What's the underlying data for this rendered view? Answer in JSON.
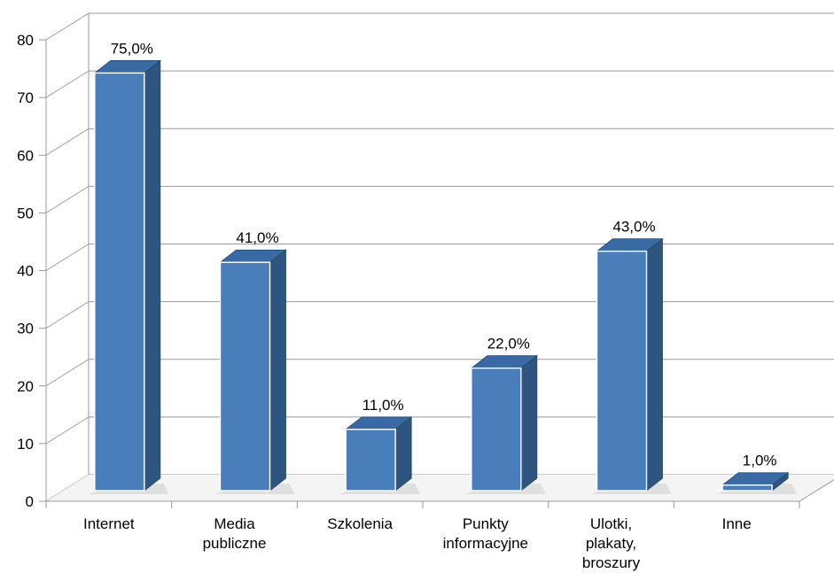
{
  "chart_data": {
    "type": "bar",
    "style": "3d-column",
    "categories": [
      [
        "Internet"
      ],
      [
        "Media",
        "publiczne"
      ],
      [
        "Szkolenia"
      ],
      [
        "Punkty",
        "informacyjne"
      ],
      [
        "Ulotki,",
        "plakaty,",
        "broszury"
      ],
      [
        "Inne"
      ]
    ],
    "values": [
      75,
      41,
      11,
      22,
      43,
      1
    ],
    "data_labels": [
      "75,0%",
      "41,0%",
      "11,0%",
      "22,0%",
      "43,0%",
      "1,0%"
    ],
    "ylim": [
      0,
      80
    ],
    "yticks": [
      0,
      10,
      20,
      30,
      40,
      50,
      60,
      70,
      80
    ],
    "grid": true,
    "colors": {
      "bar_front": "#4a7ebb",
      "bar_side": "#2d5580",
      "bar_top": "#3a6aa3",
      "grid": "#9a9a9a",
      "floor_shadow": "#d0d0d0"
    }
  }
}
